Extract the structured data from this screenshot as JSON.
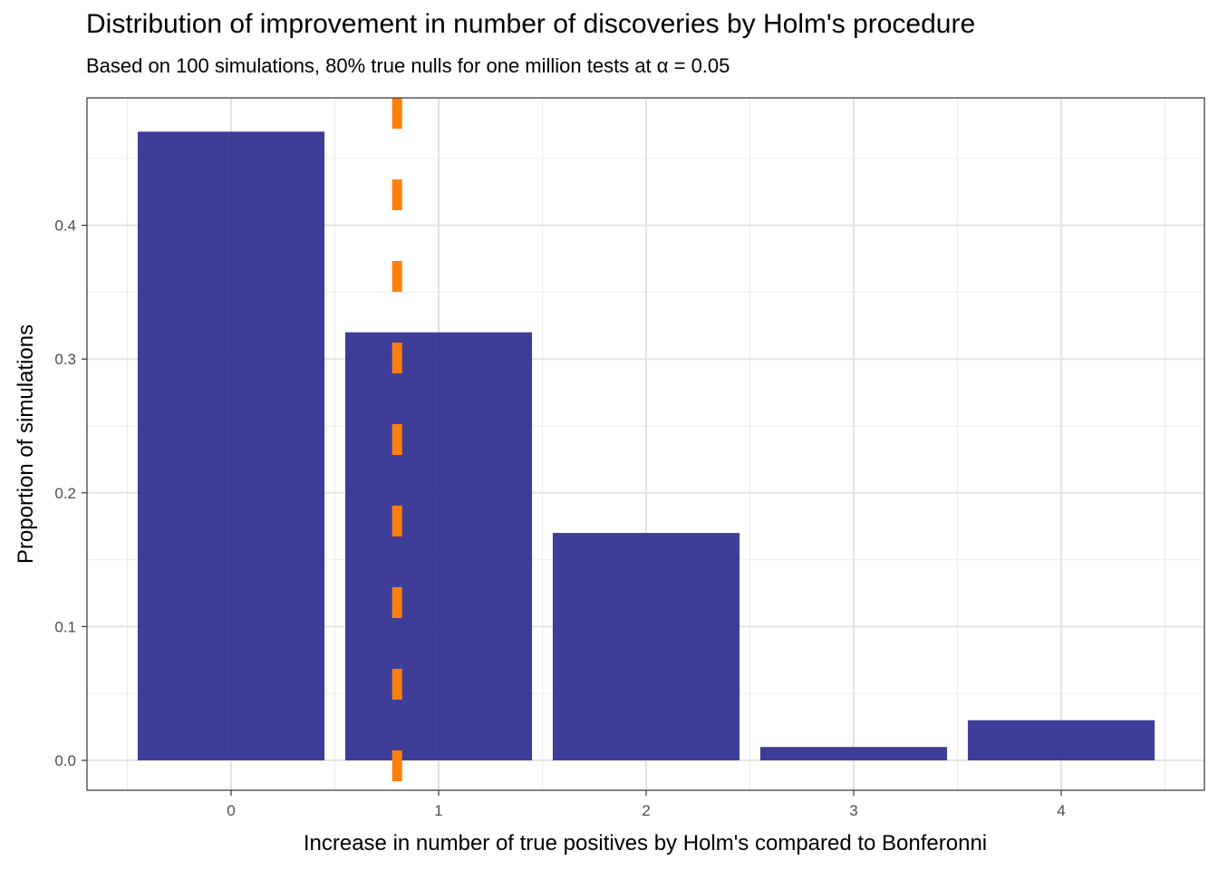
{
  "chart_data": {
    "type": "bar",
    "title": "Distribution of improvement in number of discoveries by Holm's procedure",
    "subtitle": "Based on 100 simulations, 80% true nulls for one million tests at α = 0.05",
    "xlabel": "Increase in number of true positives by Holm's compared to Bonferonni",
    "ylabel": "Proportion of simulations",
    "categories": [
      "0",
      "1",
      "2",
      "3",
      "4"
    ],
    "x": [
      0,
      1,
      2,
      3,
      4
    ],
    "values": [
      0.47,
      0.32,
      0.17,
      0.01,
      0.03
    ],
    "xlim": [
      -0.5,
      4.5
    ],
    "ylim": [
      0,
      0.47
    ],
    "yticks": [
      0.0,
      0.1,
      0.2,
      0.3,
      0.4
    ],
    "ytick_labels": [
      "0.0",
      "0.1",
      "0.2",
      "0.3",
      "0.4"
    ],
    "xticks": [
      0,
      1,
      2,
      3,
      4
    ],
    "xtick_labels": [
      "0",
      "1",
      "2",
      "3",
      "4"
    ],
    "reference_line": {
      "x": 0.8,
      "style": "dashed",
      "color": "#ff7f0e"
    },
    "bar_color": "#2e2e8f",
    "grid": true,
    "legend": "none"
  }
}
